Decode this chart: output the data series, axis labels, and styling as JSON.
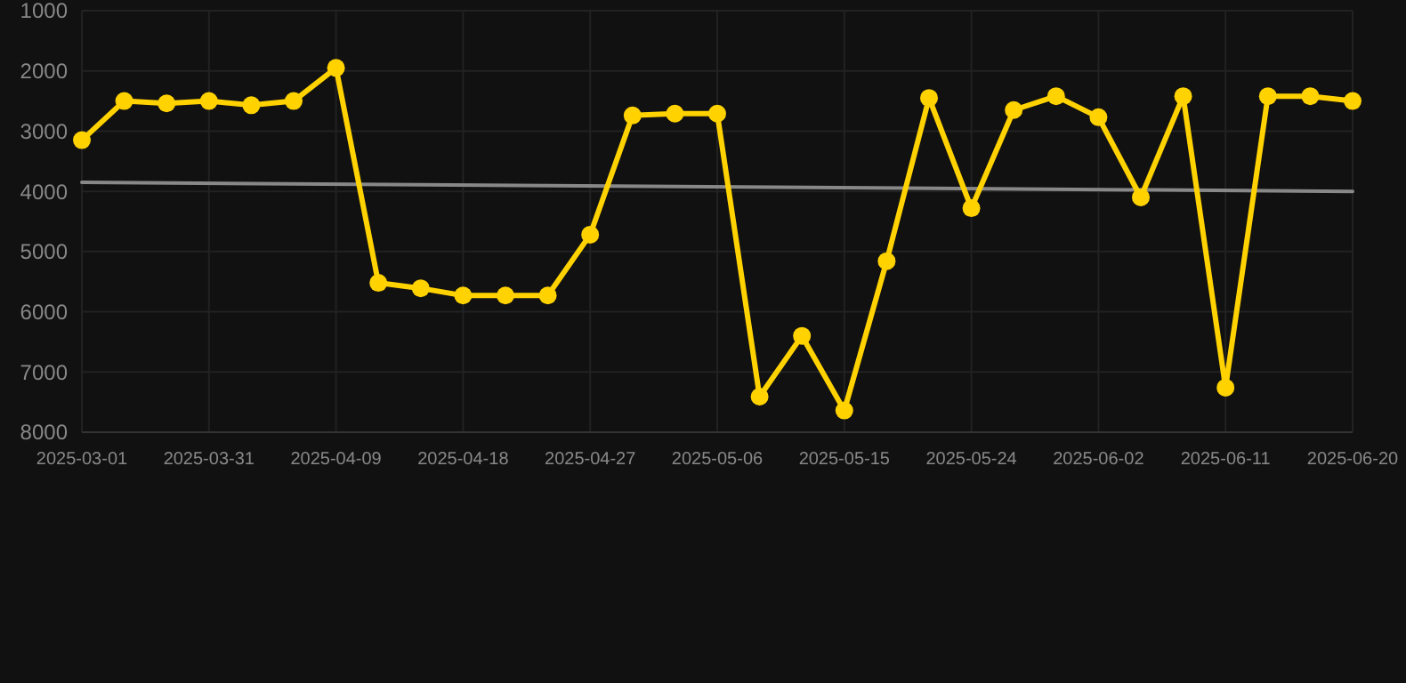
{
  "chart_data": {
    "type": "line",
    "categories": [
      "2025-03-01",
      null,
      null,
      "2025-03-31",
      null,
      null,
      "2025-04-09",
      null,
      null,
      "2025-04-18",
      null,
      null,
      "2025-04-27",
      null,
      null,
      "2025-05-06",
      null,
      null,
      "2025-05-15",
      null,
      null,
      "2025-05-24",
      null,
      null,
      "2025-06-02",
      null,
      null,
      "2025-06-11",
      null,
      null,
      "2025-06-20"
    ],
    "series": [
      {
        "color": "#ffd200",
        "marker": "circle",
        "values": [
          3150,
          2500,
          2540,
          2500,
          2570,
          2500,
          1950,
          5520,
          5610,
          5730,
          5730,
          5730,
          4720,
          2740,
          2710,
          2710,
          7410,
          6400,
          7640,
          5160,
          2450,
          4280,
          2650,
          2420,
          2770,
          4100,
          2420,
          7260,
          2420,
          2420,
          2500
        ]
      },
      {
        "type": "line",
        "color": "#888888",
        "marker": "none",
        "values": [
          3850,
          null,
          null,
          null,
          null,
          null,
          null,
          null,
          null,
          null,
          null,
          null,
          null,
          null,
          null,
          null,
          null,
          null,
          null,
          null,
          null,
          null,
          null,
          null,
          null,
          null,
          null,
          null,
          null,
          null,
          4000
        ]
      }
    ],
    "ylim": [
      8000,
      1000
    ],
    "yticks": [
      1000,
      2000,
      3000,
      4000,
      5000,
      6000,
      7000,
      8000
    ],
    "grid": true
  }
}
